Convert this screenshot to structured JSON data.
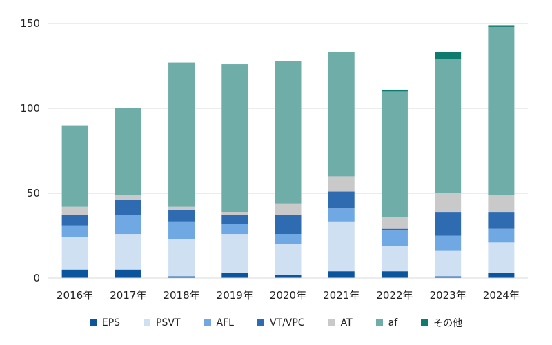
{
  "chart_data": {
    "type": "bar",
    "stacked": true,
    "categories": [
      "2016年",
      "2017年",
      "2018年",
      "2019年",
      "2020年",
      "2021年",
      "2022年",
      "2023年",
      "2024年"
    ],
    "series": [
      {
        "name": "EPS",
        "color": "#0a559c",
        "values": [
          5,
          5,
          1,
          3,
          2,
          4,
          4,
          1,
          3
        ]
      },
      {
        "name": "PSVT",
        "color": "#cfe0f3",
        "values": [
          19,
          21,
          22,
          23,
          18,
          29,
          15,
          15,
          18
        ]
      },
      {
        "name": "AFL",
        "color": "#6fa8e2",
        "values": [
          7,
          11,
          10,
          6,
          6,
          8,
          9,
          9,
          8
        ]
      },
      {
        "name": "VT/VPC",
        "color": "#2e6bb0",
        "values": [
          6,
          9,
          7,
          5,
          11,
          10,
          1,
          14,
          10
        ]
      },
      {
        "name": "AT",
        "color": "#c9c9c9",
        "values": [
          5,
          3,
          2,
          2,
          7,
          9,
          7,
          11,
          10
        ]
      },
      {
        "name": "af",
        "color": "#6fada9",
        "values": [
          48,
          51,
          85,
          87,
          84,
          73,
          74,
          79,
          99
        ]
      },
      {
        "name": "その他",
        "color": "#0f7a6e",
        "values": [
          0,
          0,
          0,
          0,
          0,
          0,
          1,
          4,
          1
        ]
      }
    ],
    "yticks": [
      0,
      50,
      100,
      150
    ],
    "ylim": [
      0,
      150
    ],
    "grid": true,
    "legend_position": "bottom"
  }
}
